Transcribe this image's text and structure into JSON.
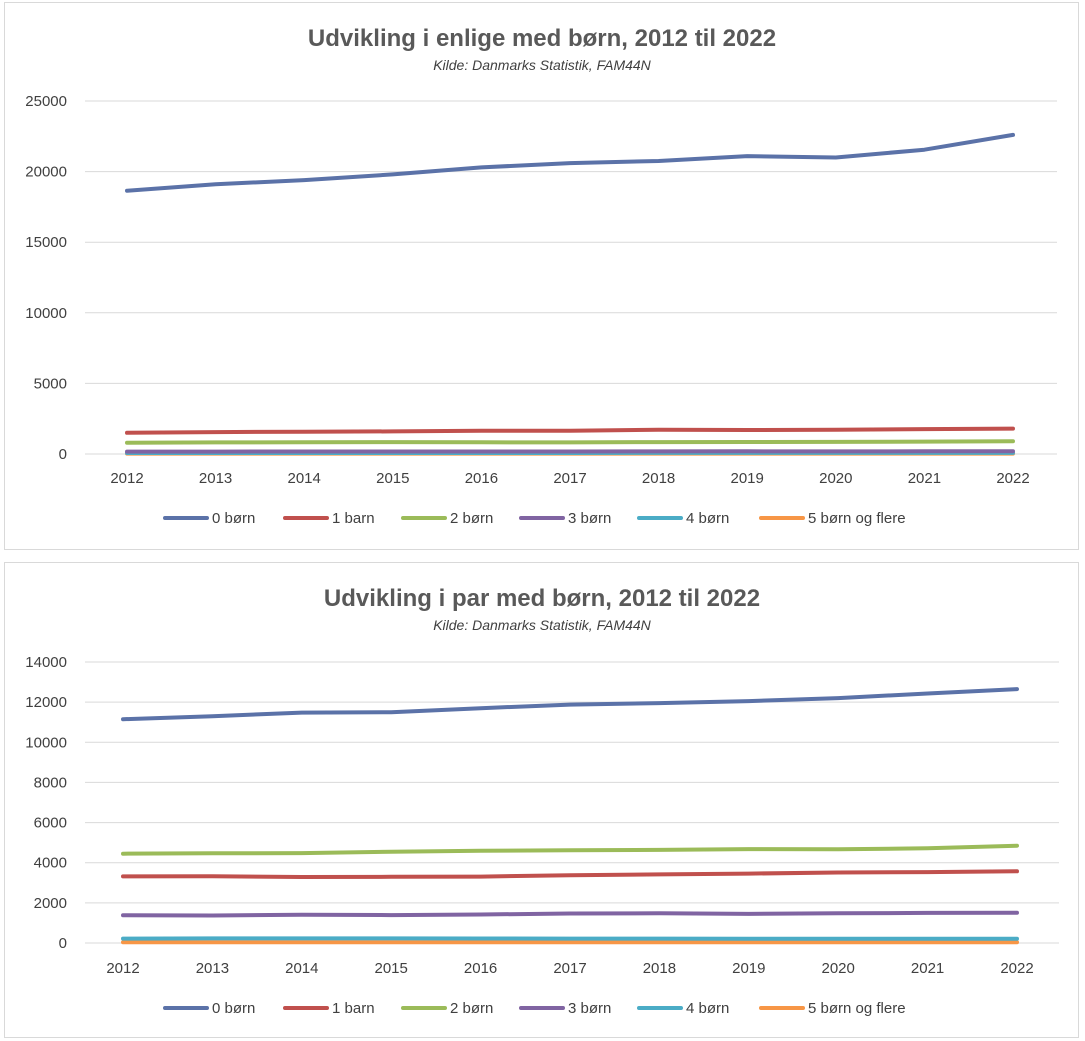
{
  "chart_data": [
    {
      "type": "line",
      "title": "Udvikling i enlige med børn, 2012 til 2022",
      "subtitle": "Kilde: Danmarks Statistik, FAM44N",
      "xlabel": "",
      "ylabel": "",
      "ylim": [
        0,
        25000
      ],
      "yticks": [
        0,
        5000,
        10000,
        15000,
        20000,
        25000
      ],
      "grid": true,
      "legend_position": "bottom",
      "categories": [
        "2012",
        "2013",
        "2014",
        "2015",
        "2016",
        "2017",
        "2018",
        "2019",
        "2020",
        "2021",
        "2022"
      ],
      "series": [
        {
          "name": "0 børn",
          "color": "#5b72a8",
          "values": [
            18650,
            19100,
            19400,
            19800,
            20300,
            20600,
            20750,
            21100,
            21000,
            21550,
            22600
          ]
        },
        {
          "name": "1 barn",
          "color": "#c0504d",
          "values": [
            1500,
            1550,
            1580,
            1600,
            1650,
            1650,
            1720,
            1700,
            1720,
            1760,
            1800
          ]
        },
        {
          "name": "2 børn",
          "color": "#9bbb59",
          "values": [
            800,
            820,
            830,
            840,
            830,
            820,
            840,
            850,
            860,
            880,
            900
          ]
        },
        {
          "name": "3 børn",
          "color": "#8064a2",
          "values": [
            170,
            170,
            175,
            180,
            180,
            180,
            185,
            190,
            185,
            190,
            190
          ]
        },
        {
          "name": "4 børn",
          "color": "#4bacc6",
          "values": [
            70,
            70,
            70,
            72,
            72,
            72,
            75,
            75,
            75,
            78,
            78
          ]
        },
        {
          "name": "5 børn og flere",
          "color": "#f79646",
          "values": [
            25,
            25,
            25,
            26,
            26,
            26,
            27,
            27,
            27,
            28,
            28
          ]
        }
      ]
    },
    {
      "type": "line",
      "title": "Udvikling i par med børn, 2012 til 2022",
      "subtitle": "Kilde: Danmarks Statistik, FAM44N",
      "xlabel": "",
      "ylabel": "",
      "ylim": [
        0,
        14000
      ],
      "yticks": [
        0,
        2000,
        4000,
        6000,
        8000,
        10000,
        12000,
        14000
      ],
      "grid": true,
      "legend_position": "bottom",
      "categories": [
        "2012",
        "2013",
        "2014",
        "2015",
        "2016",
        "2017",
        "2018",
        "2019",
        "2020",
        "2021",
        "2022"
      ],
      "series": [
        {
          "name": "0 børn",
          "color": "#5b72a8",
          "values": [
            11150,
            11300,
            11480,
            11500,
            11700,
            11880,
            11950,
            12050,
            12200,
            12430,
            12650
          ]
        },
        {
          "name": "1 barn",
          "color": "#c0504d",
          "values": [
            3320,
            3330,
            3290,
            3300,
            3310,
            3380,
            3420,
            3460,
            3510,
            3530,
            3570
          ]
        },
        {
          "name": "2 børn",
          "color": "#9bbb59",
          "values": [
            4450,
            4470,
            4480,
            4550,
            4600,
            4620,
            4640,
            4680,
            4670,
            4720,
            4850
          ]
        },
        {
          "name": "3 børn",
          "color": "#8064a2",
          "values": [
            1380,
            1370,
            1410,
            1390,
            1420,
            1470,
            1480,
            1450,
            1480,
            1500,
            1510
          ]
        },
        {
          "name": "4 børn",
          "color": "#4bacc6",
          "values": [
            220,
            230,
            230,
            230,
            225,
            220,
            220,
            215,
            215,
            215,
            210
          ]
        },
        {
          "name": "5 børn og flere",
          "color": "#f79646",
          "values": [
            40,
            40,
            40,
            40,
            40,
            40,
            40,
            40,
            38,
            38,
            38
          ]
        }
      ]
    }
  ]
}
